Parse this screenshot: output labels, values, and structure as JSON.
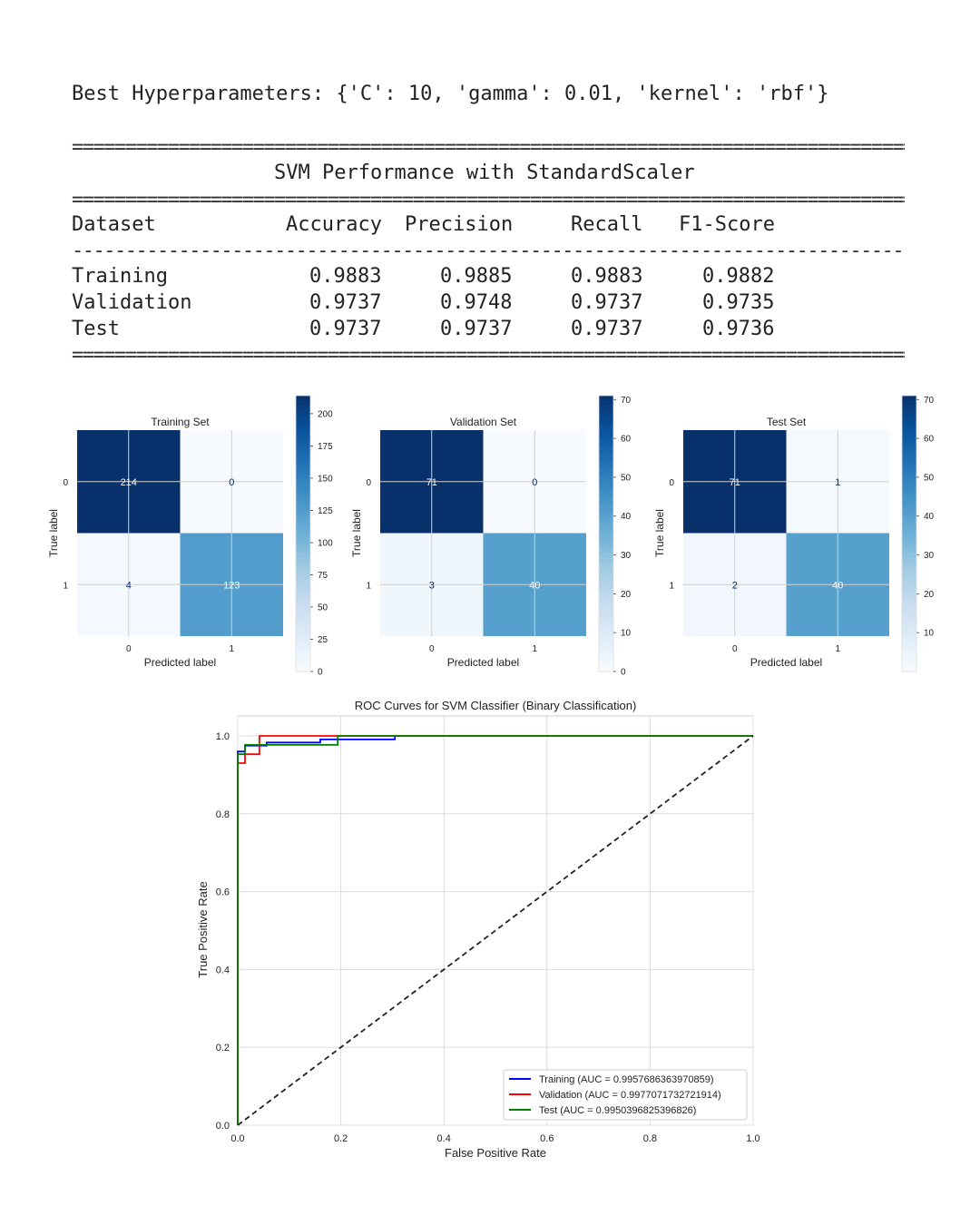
{
  "header": {
    "hyper_line": "Best Hyperparameters: {'C': 10, 'gamma': 0.01, 'kernel': 'rbf'}",
    "eq_rule": "============================================================================================================================",
    "dash_rule": "----------------------------------------------------------------------------------------------------------------------------",
    "table_title": "SVM Performance with StandardScaler"
  },
  "table": {
    "columns": [
      "Dataset",
      "Accuracy",
      "Precision",
      "Recall",
      "F1-Score"
    ],
    "rows": [
      {
        "dataset": "Training",
        "values": [
          "0.9883",
          "0.9885",
          "0.9883",
          "0.9882"
        ]
      },
      {
        "dataset": "Validation",
        "values": [
          "0.9737",
          "0.9748",
          "0.9737",
          "0.9735"
        ]
      },
      {
        "dataset": "Test",
        "values": [
          "0.9737",
          "0.9737",
          "0.9737",
          "0.9736"
        ]
      }
    ]
  },
  "colors": {
    "cm_dark": "#08306b",
    "cm_light": "#f7fbff",
    "training": "#0000ff",
    "validation": "#ff0000",
    "test": "#008000",
    "diagonal": "#222222"
  },
  "chart_data": [
    {
      "type": "heatmap",
      "title": "Training Set",
      "xlabel": "Predicted label",
      "ylabel": "True label",
      "x_ticks": [
        "0",
        "1"
      ],
      "y_ticks": [
        "0",
        "1"
      ],
      "matrix": [
        [
          214,
          0
        ],
        [
          4,
          123
        ]
      ],
      "colorbar": {
        "min": 0,
        "max": 214,
        "ticks": [
          0,
          25,
          50,
          75,
          100,
          125,
          150,
          175,
          200
        ]
      }
    },
    {
      "type": "heatmap",
      "title": "Validation Set",
      "xlabel": "Predicted label",
      "ylabel": "True label",
      "x_ticks": [
        "0",
        "1"
      ],
      "y_ticks": [
        "0",
        "1"
      ],
      "matrix": [
        [
          71,
          0
        ],
        [
          3,
          40
        ]
      ],
      "colorbar": {
        "min": 0,
        "max": 71,
        "ticks": [
          0,
          10,
          20,
          30,
          40,
          50,
          60,
          70
        ]
      }
    },
    {
      "type": "heatmap",
      "title": "Test Set",
      "xlabel": "Predicted label",
      "ylabel": "True label",
      "x_ticks": [
        "0",
        "1"
      ],
      "y_ticks": [
        "0",
        "1"
      ],
      "matrix": [
        [
          71,
          1
        ],
        [
          2,
          40
        ]
      ],
      "colorbar": {
        "min": 0,
        "max": 71,
        "ticks": [
          10,
          20,
          30,
          40,
          50,
          60,
          70
        ]
      }
    },
    {
      "type": "line",
      "title": "ROC Curves for SVM Classifier (Binary Classification)",
      "xlabel": "False Positive Rate",
      "ylabel": "True Positive Rate",
      "xlim": [
        0,
        1
      ],
      "ylim": [
        0,
        1
      ],
      "x_ticks": [
        "0.0",
        "0.2",
        "0.4",
        "0.6",
        "0.8",
        "1.0"
      ],
      "y_ticks": [
        "0.0",
        "0.2",
        "0.4",
        "0.6",
        "0.8",
        "1.0"
      ],
      "grid": true,
      "legend_position": "lower-right",
      "series": [
        {
          "name": "Training (AUC = 0.9957686363970859)",
          "color": "#0000ff",
          "x": [
            0,
            0,
            0.014,
            0.014,
            0.056,
            0.056,
            0.16,
            0.16,
            0.305,
            0.305,
            1.0
          ],
          "y": [
            0,
            0.96,
            0.96,
            0.975,
            0.975,
            0.983,
            0.983,
            0.991,
            0.991,
            1.0,
            1.0
          ]
        },
        {
          "name": "Validation (AUC = 0.9977071732721914)",
          "color": "#ff0000",
          "x": [
            0,
            0,
            0.014,
            0.014,
            0.042,
            0.042,
            1.0
          ],
          "y": [
            0,
            0.93,
            0.93,
            0.953,
            0.953,
            1.0,
            1.0
          ]
        },
        {
          "name": "Test (AUC = 0.9950396825396826)",
          "color": "#008000",
          "x": [
            0,
            0,
            0.014,
            0.014,
            0.194,
            0.194,
            1.0
          ],
          "y": [
            0,
            0.953,
            0.953,
            0.977,
            0.977,
            1.0,
            1.0
          ]
        },
        {
          "name": "",
          "color": "#222222",
          "dashed": true,
          "x": [
            0,
            1
          ],
          "y": [
            0,
            1
          ]
        }
      ]
    }
  ]
}
